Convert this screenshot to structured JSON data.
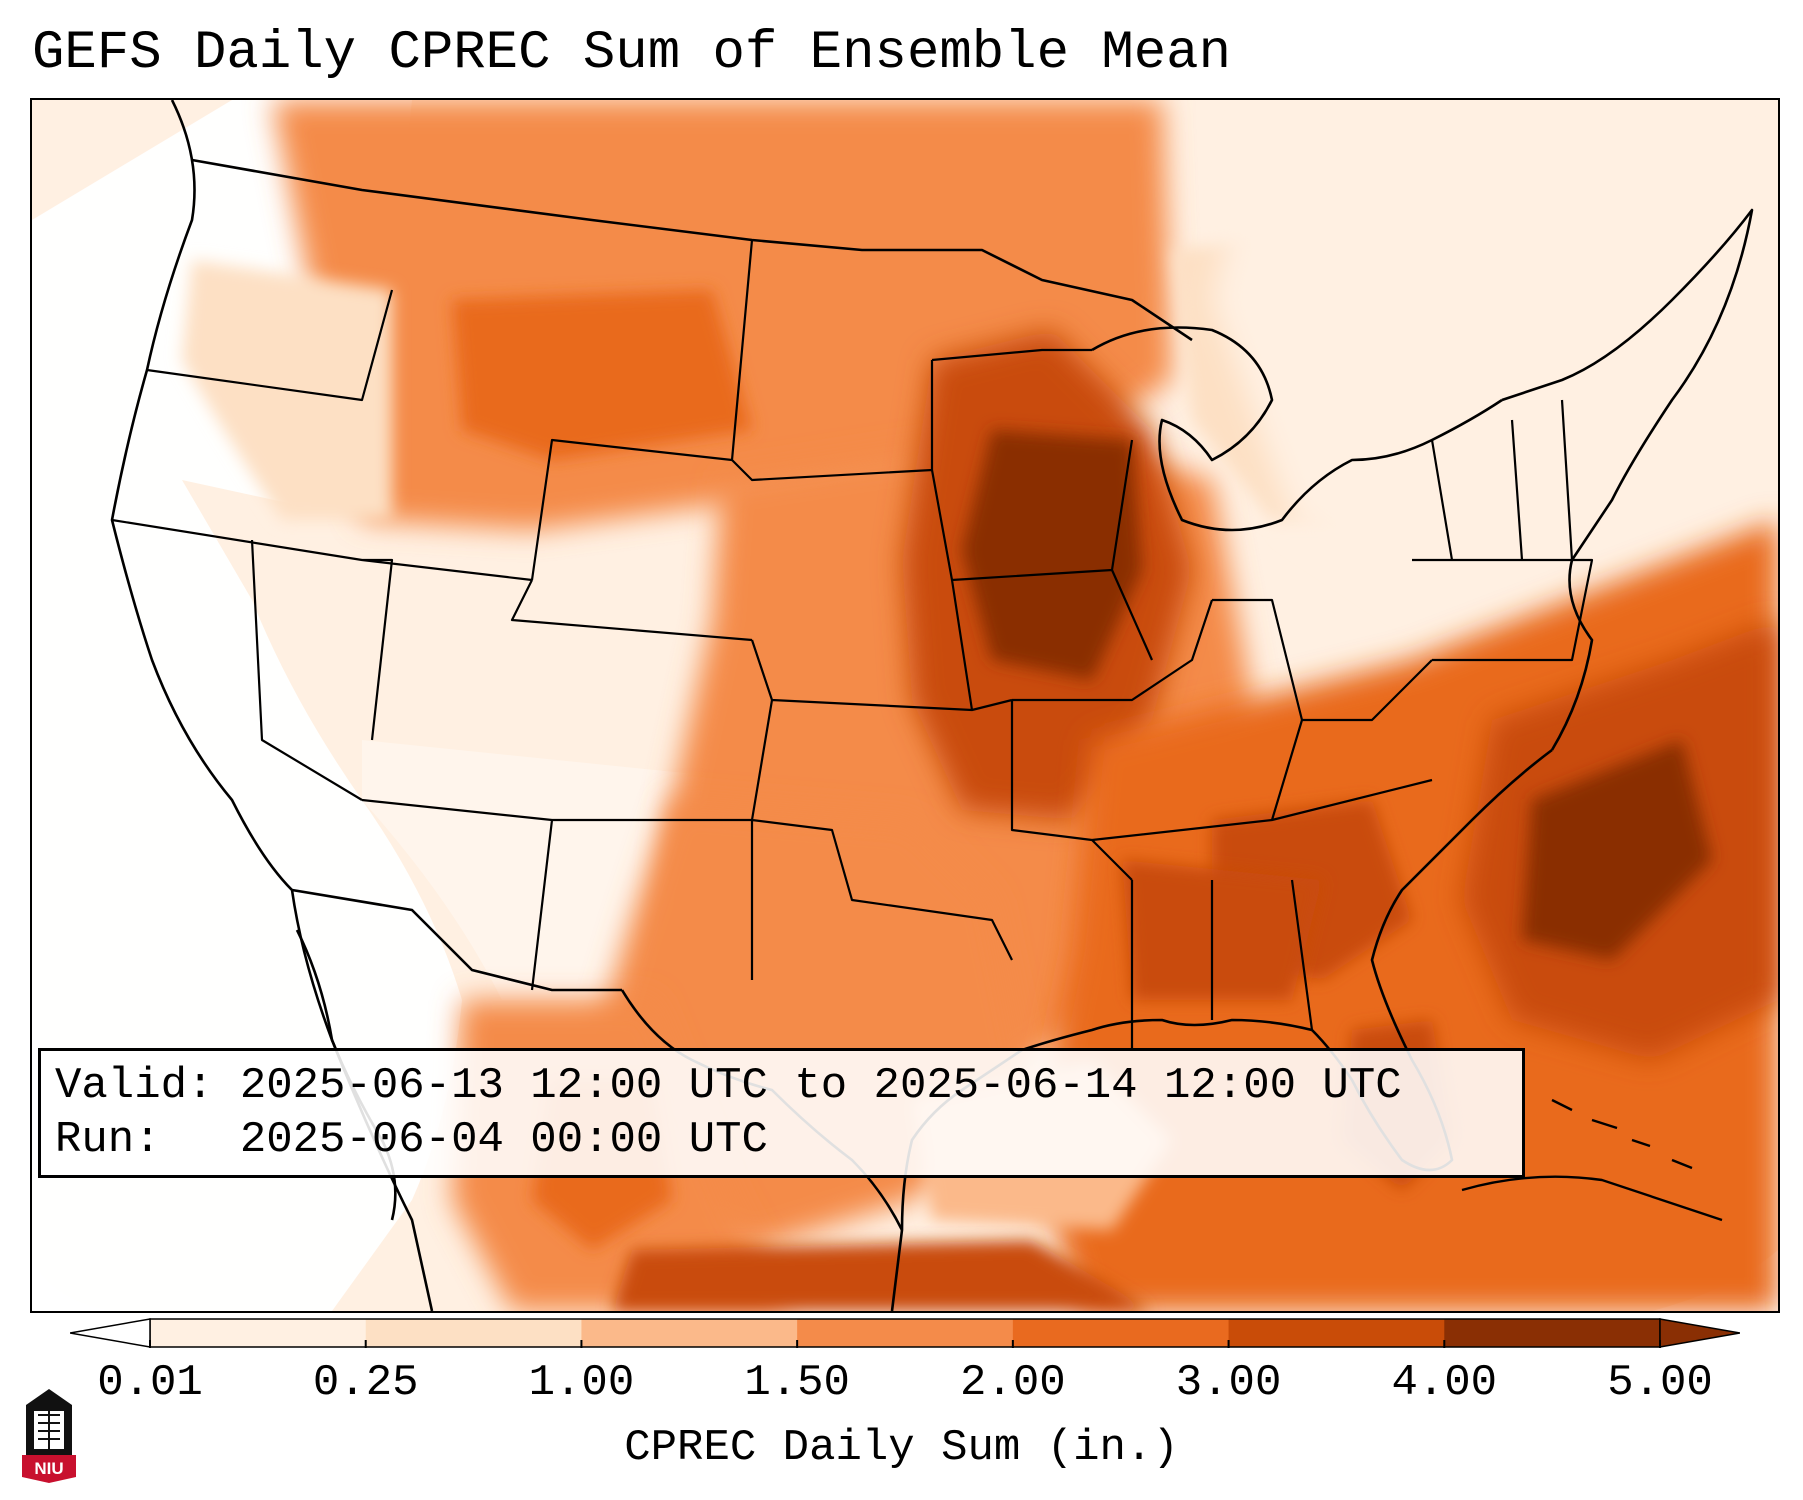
{
  "title": "GEFS Daily CPREC Sum of Ensemble Mean",
  "info": {
    "valid_label": "Valid:",
    "valid_value": "2025-06-13 12:00 UTC to 2025-06-14 12:00 UTC",
    "run_label": "Run:",
    "run_value": "2025-06-04 00:00 UTC"
  },
  "colorbar": {
    "label": "CPREC Daily Sum (in.)",
    "ticks": [
      "0.01",
      "0.25",
      "1.00",
      "1.50",
      "2.00",
      "3.00",
      "4.00",
      "5.00"
    ],
    "colors": [
      "#ffffff",
      "#fff0e2",
      "#fde0c4",
      "#fbb98a",
      "#f48b4a",
      "#e96a1f",
      "#c94c08",
      "#8a2f04"
    ],
    "under_color": "#ffffff",
    "over_color": "#8a2f04"
  },
  "logo": {
    "text": "NIU",
    "colors": {
      "red": "#c8102e",
      "black": "#111111"
    }
  },
  "map": {
    "projection": "lambert-conformal",
    "region": "CONUS",
    "heavy_regions": [
      "Upper Mississippi Valley",
      "Southeast Atlantic coast offshore",
      "Northern Rockies"
    ]
  }
}
